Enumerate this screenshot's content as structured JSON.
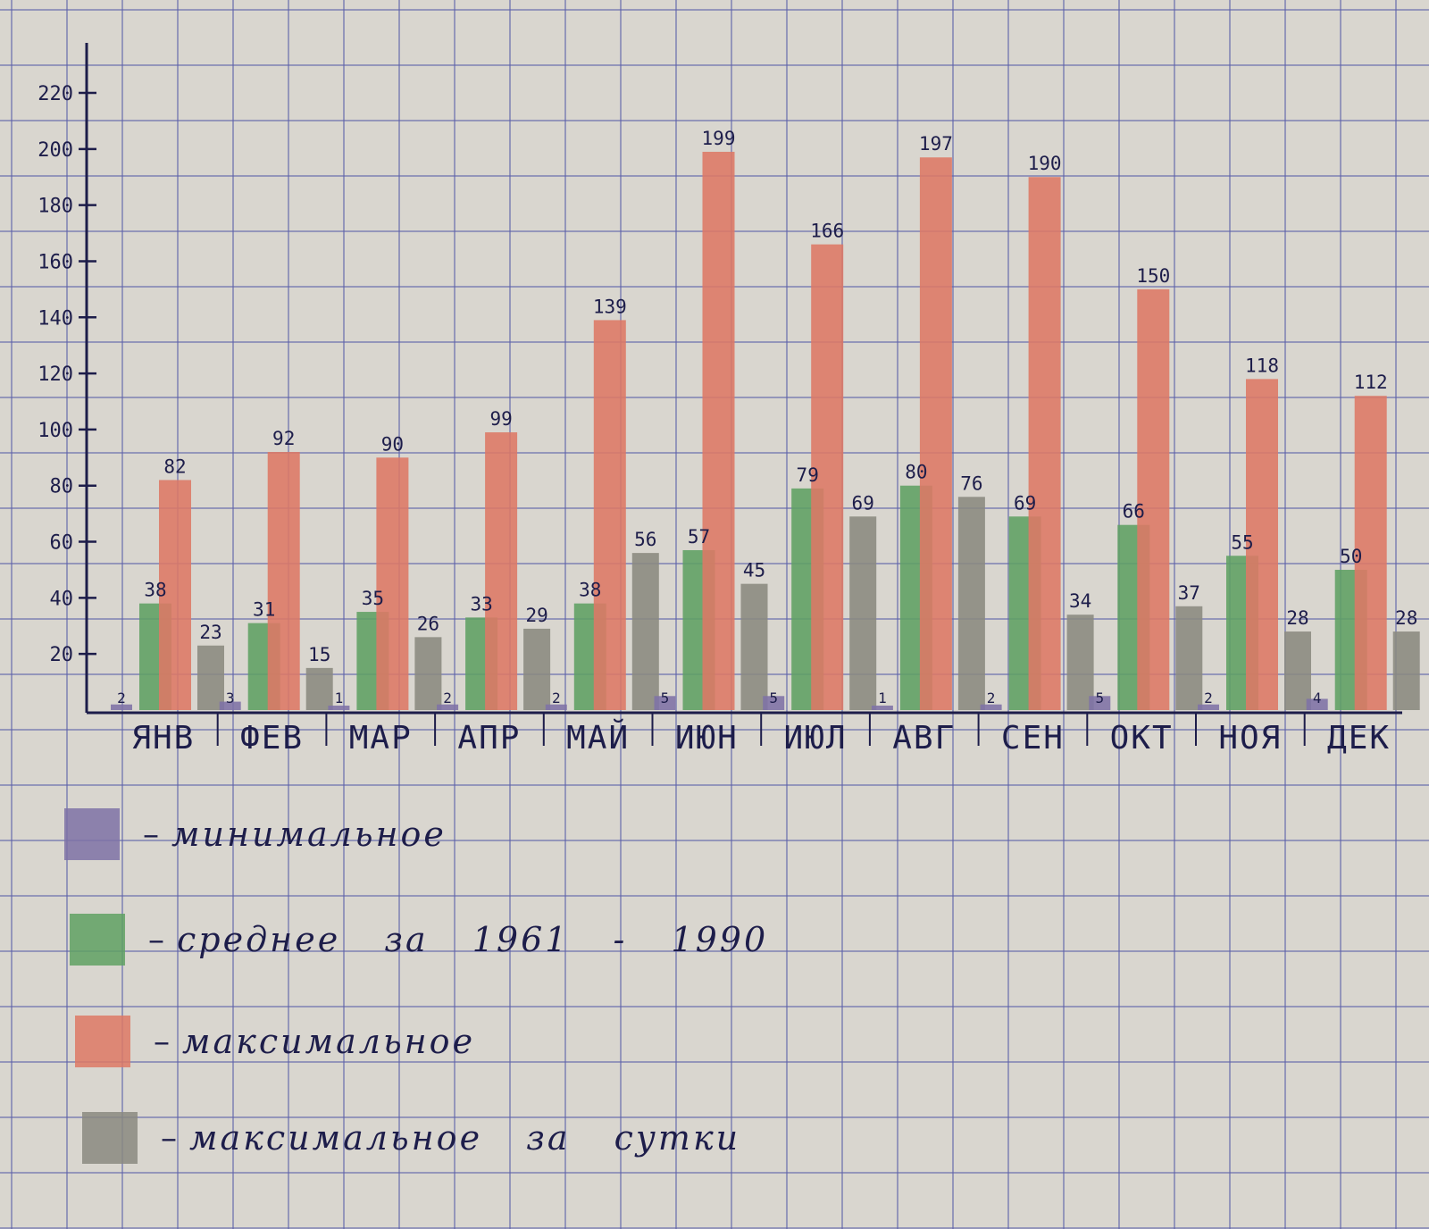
{
  "chart_data": {
    "type": "bar",
    "title": "",
    "xlabel": "",
    "ylabel": "",
    "ylim": [
      0,
      230
    ],
    "yticks": [
      20,
      40,
      60,
      80,
      100,
      120,
      140,
      160,
      180,
      200,
      220
    ],
    "categories": [
      "ЯНВ",
      "ФЕВ",
      "МАР",
      "АПР",
      "МАЙ",
      "ИЮН",
      "ИЮЛ",
      "АВГ",
      "СЕН",
      "ОКТ",
      "НОЯ",
      "ДЕК"
    ],
    "series": [
      {
        "name": "минимальное",
        "color": "#7e72a6",
        "values": [
          2,
          3,
          1,
          2,
          2,
          5,
          5,
          1,
          2,
          5,
          2,
          4
        ]
      },
      {
        "name": "среднее за 1961 - 1990",
        "color": "#5fa163",
        "values": [
          38,
          31,
          35,
          33,
          38,
          57,
          79,
          80,
          69,
          66,
          55,
          50
        ]
      },
      {
        "name": "максимальное",
        "color": "#dd7965",
        "values": [
          82,
          92,
          90,
          99,
          139,
          199,
          166,
          197,
          190,
          150,
          118,
          112
        ]
      },
      {
        "name": "максимальное за сутки",
        "color": "#8a8a80",
        "values": [
          23,
          15,
          26,
          29,
          56,
          45,
          69,
          76,
          34,
          37,
          28,
          28
        ]
      }
    ],
    "grid": true,
    "legend_position": "bottom-left"
  }
}
